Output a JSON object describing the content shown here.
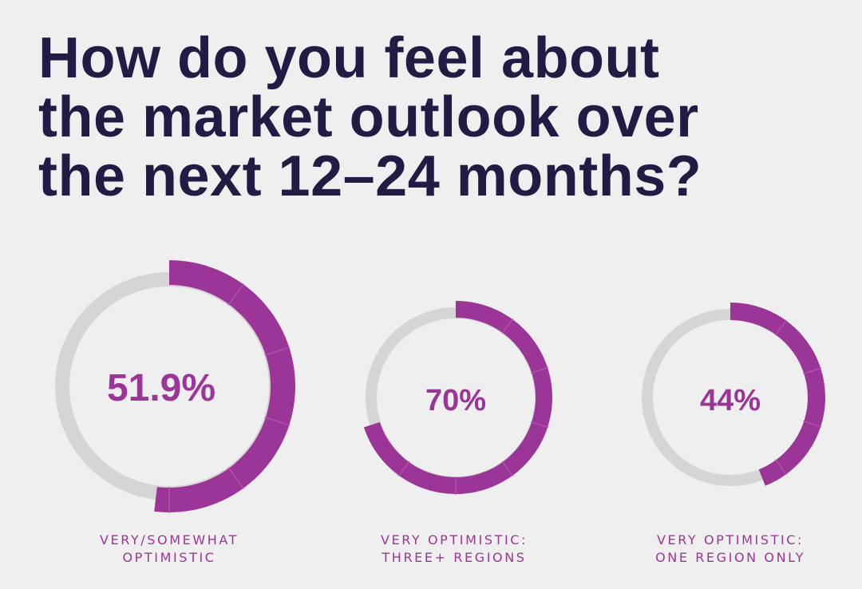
{
  "title_lines": [
    "How do you feel about",
    "the market outlook over",
    "the next 12–24 months?"
  ],
  "colors": {
    "title": "#221c45",
    "accent": "#9b3597",
    "track": "#d4d5d4",
    "background": "#efefef"
  },
  "chart_data": [
    {
      "type": "pie",
      "style": "donut",
      "value": 51.9,
      "label": "51.9%",
      "caption": [
        "VERY/SOMEWHAT",
        "OPTIMISTIC"
      ]
    },
    {
      "type": "pie",
      "style": "donut",
      "value": 70,
      "label": "70%",
      "caption": [
        "VERY OPTIMISTIC:",
        "THREE+ REGIONS"
      ]
    },
    {
      "type": "pie",
      "style": "donut",
      "value": 44,
      "label": "44%",
      "caption": [
        "VERY OPTIMISTIC:",
        "ONE REGION ONLY"
      ]
    }
  ]
}
